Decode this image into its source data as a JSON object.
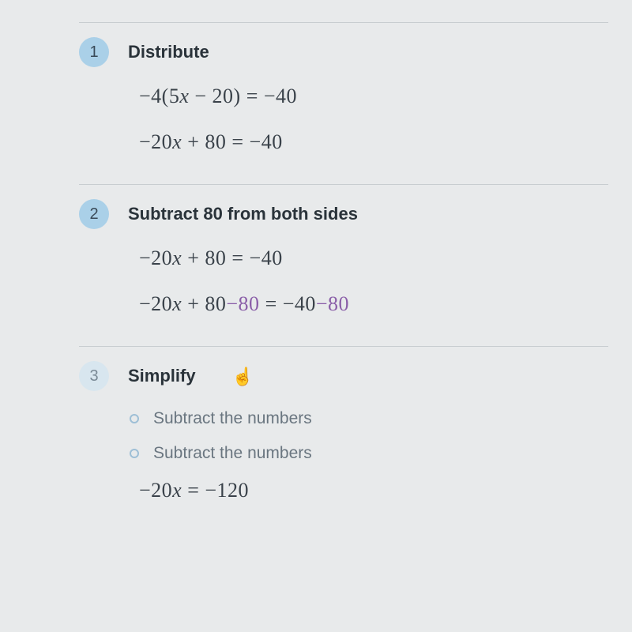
{
  "colors": {
    "background": "#e8eaeb",
    "divider": "#c8cdd0",
    "text_primary": "#2a333a",
    "text_math": "#3a424a",
    "text_sub": "#6a7680",
    "accent_purple": "#8a5ea8",
    "badge_solid_bg": "#aad0e8",
    "badge_light_bg": "#d8e6ef",
    "dot_border": "#9ebfd6"
  },
  "typography": {
    "title_fontsize": 22,
    "title_weight": 700,
    "math_fontsize": 26,
    "math_family": "Times New Roman",
    "sub_fontsize": 21,
    "badge_fontsize": 20
  },
  "steps": [
    {
      "num": "1",
      "badge_style": "solid",
      "title": "Distribute",
      "equations": [
        {
          "plain": "−4(5x − 20) = −40",
          "purple_suffix": ""
        },
        {
          "plain": "−20x + 80 = −40",
          "purple_suffix": ""
        }
      ]
    },
    {
      "num": "2",
      "badge_style": "solid",
      "title": "Subtract 80 from both sides",
      "equations": [
        {
          "plain": "−20x + 80 = −40",
          "purple_suffix": ""
        },
        {
          "plain": "−20x + 80",
          "mid_purple": "−80",
          "mid_plain": " = −40",
          "purple_suffix": "−80"
        }
      ]
    },
    {
      "num": "3",
      "badge_style": "light",
      "title": "Simplify",
      "show_cursor": true,
      "sub_items": [
        "Subtract the numbers",
        "Subtract the numbers"
      ],
      "equations": [
        {
          "plain": "−20x = −120",
          "purple_suffix": ""
        }
      ]
    }
  ]
}
